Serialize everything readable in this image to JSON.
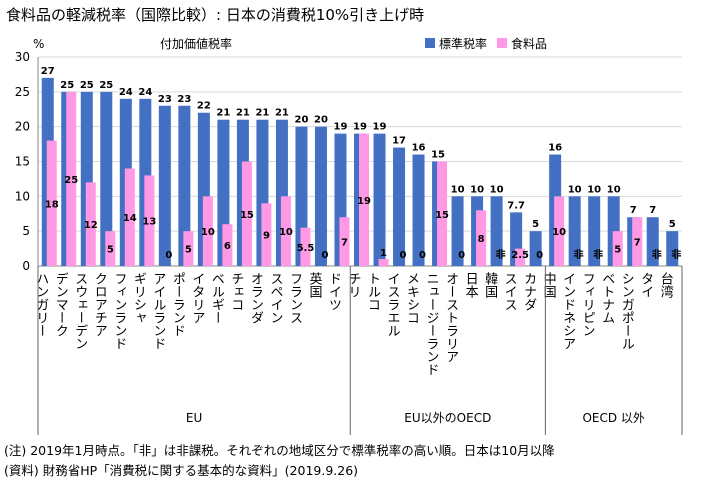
{
  "title": "食料品の軽減税率（国際比較）: 日本の消費税10%引き上げ時",
  "notes": [
    "(注) 2019年1月時点。「非」は非課税。それぞれの地域区分で標準税率の高い順。日本は10月以降",
    "(資料) 財務省HP「消費税に関する基本的な資料」(2019.9.26)"
  ],
  "colors": {
    "standard": "#4470c4",
    "food": "#ff99e6",
    "grid": "#d9d9d9"
  },
  "chart_data": {
    "type": "bar",
    "title": "付加価値税率",
    "ylabel": "%",
    "ylim": [
      0,
      30
    ],
    "yticks": [
      0,
      5,
      10,
      15,
      20,
      25,
      30
    ],
    "legend": {
      "placement": "top-right",
      "entries": [
        "標準税率",
        "食料品"
      ]
    },
    "categories": [
      "ハンガリー",
      "デンマーク",
      "スウェーデン",
      "クロアチア",
      "フィンランド",
      "ギリシャ",
      "アイルランド",
      "ポーランド",
      "イタリア",
      "ベルギー",
      "チェコ",
      "オランダ",
      "スペイン",
      "フランス",
      "英国",
      "ドイツ",
      "チリ",
      "トルコ",
      "イスラエル",
      "メキシコ",
      "ニュージーランド",
      "オーストラリア",
      "日本",
      "韓国",
      "スイス",
      "カナダ",
      "中国",
      "インドネシア",
      "フィリピン",
      "ベトナム",
      "シンガポール",
      "タイ",
      "台湾"
    ],
    "series": [
      {
        "name": "標準税率",
        "values": [
          27,
          25,
          25,
          25,
          24,
          24,
          23,
          23,
          22,
          21,
          21,
          21,
          21,
          20,
          20,
          19,
          19,
          19,
          17,
          16,
          15,
          10,
          10,
          10,
          7.7,
          5,
          16,
          10,
          10,
          10,
          7,
          7,
          5
        ],
        "labels": [
          "27",
          "25",
          "25",
          "25",
          "24",
          "24",
          "23",
          "23",
          "22",
          "21",
          "21",
          "21",
          "21",
          "20",
          "20",
          "19",
          "19",
          "19",
          "17",
          "16",
          "15",
          "10",
          "10",
          "10",
          "7.7",
          "5",
          "16",
          "10",
          "10",
          "10",
          "7",
          "7",
          "5"
        ]
      },
      {
        "name": "食料品",
        "values": [
          18,
          25,
          12,
          5,
          14,
          13,
          0,
          5,
          10,
          6,
          15,
          9,
          10,
          5.5,
          0,
          7,
          19,
          1,
          0,
          0,
          15,
          0,
          8,
          0,
          2.5,
          0,
          10,
          0,
          0,
          5,
          7,
          0,
          0
        ],
        "labels": [
          "18",
          "25",
          "12",
          "5",
          "14",
          "13",
          "0",
          "5",
          "10",
          "6",
          "15",
          "9",
          "10",
          "5.5",
          "0",
          "7",
          "19",
          "1",
          "0",
          "0",
          "15",
          "0",
          "8",
          "非",
          "2.5",
          "0",
          "10",
          "非",
          "非",
          "5",
          "7",
          "非",
          "非"
        ]
      }
    ],
    "groups": [
      {
        "name": "EU",
        "count": 16
      },
      {
        "name": "EU以外のOECD",
        "count": 10
      },
      {
        "name": "OECD 以外",
        "count": 7
      }
    ]
  }
}
